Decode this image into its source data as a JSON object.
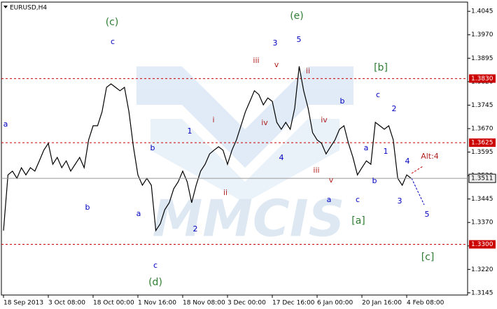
{
  "chart_data": {
    "type": "line",
    "title": "EURUSD,H4",
    "watermark": "MMCIS",
    "color": "#000000",
    "categories": [
      "18 Sep 2013",
      null,
      null,
      null,
      null,
      null,
      null,
      null,
      null,
      null,
      "3 Oct 08:00",
      null,
      null,
      null,
      null,
      null,
      null,
      null,
      null,
      null,
      "18 Oct 00:00",
      null,
      null,
      null,
      null,
      null,
      null,
      null,
      null,
      null,
      "1 Nov 16:00",
      null,
      null,
      null,
      null,
      null,
      null,
      null,
      null,
      null,
      "18 Nov 08:00",
      null,
      null,
      null,
      null,
      null,
      null,
      null,
      null,
      null,
      "3 Dec 00:00",
      null,
      null,
      null,
      null,
      null,
      null,
      null,
      null,
      null,
      "17 Dec 16:00",
      null,
      null,
      null,
      null,
      null,
      null,
      null,
      null,
      null,
      "6 Jan 00:00",
      null,
      null,
      null,
      null,
      null,
      null,
      null,
      null,
      null,
      "20 Jan 16:00",
      null,
      null,
      null,
      null,
      null,
      null,
      null,
      null,
      null,
      "4 Feb 08:00",
      null
    ],
    "values": [
      1.3344,
      1.3522,
      1.3534,
      1.3511,
      1.3545,
      1.3522,
      1.3545,
      1.3534,
      1.3567,
      1.3601,
      1.3623,
      1.3556,
      1.3578,
      1.3545,
      1.3567,
      1.3534,
      1.3556,
      1.3578,
      1.3545,
      1.3634,
      1.3679,
      1.3679,
      1.3724,
      1.3802,
      1.3813,
      1.3802,
      1.3791,
      1.3802,
      1.3724,
      1.3612,
      1.3522,
      1.3489,
      1.3511,
      1.3489,
      1.3344,
      1.3366,
      1.3411,
      1.3433,
      1.3478,
      1.35,
      1.3534,
      1.35,
      1.3433,
      1.3489,
      1.3534,
      1.3556,
      1.3589,
      1.3601,
      1.3612,
      1.3601,
      1.3556,
      1.3601,
      1.3634,
      1.3679,
      1.3724,
      1.3757,
      1.3791,
      1.3779,
      1.3746,
      1.3768,
      1.3757,
      1.369,
      1.3668,
      1.369,
      1.3668,
      1.3735,
      1.3869,
      1.3791,
      1.3735,
      1.3657,
      1.3634,
      1.3623,
      1.3589,
      1.3612,
      1.3634,
      1.3668,
      1.3679,
      1.3623,
      1.3578,
      1.3522,
      1.3545,
      1.3567,
      1.3556,
      1.369,
      1.3679,
      1.3668,
      1.3679,
      1.3634,
      1.3511,
      1.3489,
      1.3522,
      1.3511
    ],
    "ylim": [
      1.3138,
      1.407
    ],
    "yticks": [
      1.3145,
      {
        "value": 1.322,
        "label": "1.3220"
      },
      1.3295,
      {
        "value": 1.337,
        "label": "1.3370"
      },
      1.3445,
      {
        "value": 1.352,
        "label": "1.3520"
      },
      1.3595,
      {
        "value": 1.367,
        "label": "1.3670"
      },
      1.3745,
      {
        "value": 1.382,
        "label": "1.3820"
      },
      1.3895,
      {
        "value": 1.397,
        "label": "1.3970"
      },
      1.4045
    ],
    "levels": [
      {
        "value": 1.383,
        "label": "1.3830"
      },
      {
        "value": 1.3625,
        "label": "1.3625"
      },
      {
        "value": 1.33,
        "label": "1.3300"
      }
    ],
    "level_color": "#cc0000",
    "current_price": 1.3511,
    "annotations": [
      {
        "text": "(c)",
        "color": "#2e7d32"
      },
      {
        "text": "c",
        "color": "#0000c0"
      },
      {
        "text": "a",
        "color": "#0000c0"
      },
      {
        "text": "b",
        "color": "#0000c0"
      },
      {
        "text": "b",
        "color": "#0000c0"
      },
      {
        "text": "a",
        "color": "#0000c0"
      },
      {
        "text": "c",
        "color": "#0000c0"
      },
      {
        "text": "(d)",
        "color": "#2e7d32"
      },
      {
        "text": "2",
        "color": "#0000c0"
      },
      {
        "text": "1",
        "color": "#0000c0"
      },
      {
        "text": "i",
        "color": "#b22222"
      },
      {
        "text": "ii",
        "color": "#b22222"
      },
      {
        "text": "3",
        "color": "#0000c0"
      },
      {
        "text": "iii",
        "color": "#b22222"
      },
      {
        "text": "v",
        "color": "#b22222"
      },
      {
        "text": "iv",
        "color": "#b22222"
      },
      {
        "text": "4",
        "color": "#0000c0"
      },
      {
        "text": "(e)",
        "color": "#2e7d32"
      },
      {
        "text": "5",
        "color": "#0000c0"
      },
      {
        "text": "ii",
        "color": "#b22222"
      },
      {
        "text": "iv",
        "color": "#b22222"
      },
      {
        "text": "iii",
        "color": "#b22222"
      },
      {
        "text": "v",
        "color": "#b22222"
      },
      {
        "text": "b",
        "color": "#0000c0"
      },
      {
        "text": "a",
        "color": "#0000c0"
      },
      {
        "text": "c",
        "color": "#0000c0"
      },
      {
        "text": "[a]",
        "color": "#2e7d32"
      },
      {
        "text": "[b]",
        "color": "#2e7d32"
      },
      {
        "text": "c",
        "color": "#0000c0"
      },
      {
        "text": "2",
        "color": "#0000c0"
      },
      {
        "text": "a",
        "color": "#0000c0"
      },
      {
        "text": "1",
        "color": "#0000c0"
      },
      {
        "text": "b",
        "color": "#0000c0"
      },
      {
        "text": "4",
        "color": "#0000c0"
      },
      {
        "text": "3",
        "color": "#0000c0"
      },
      {
        "text": "Alt:4",
        "color": "#b22222"
      },
      {
        "text": "5",
        "color": "#0000c0"
      },
      {
        "text": "[c]",
        "color": "#2e7d32"
      }
    ]
  }
}
